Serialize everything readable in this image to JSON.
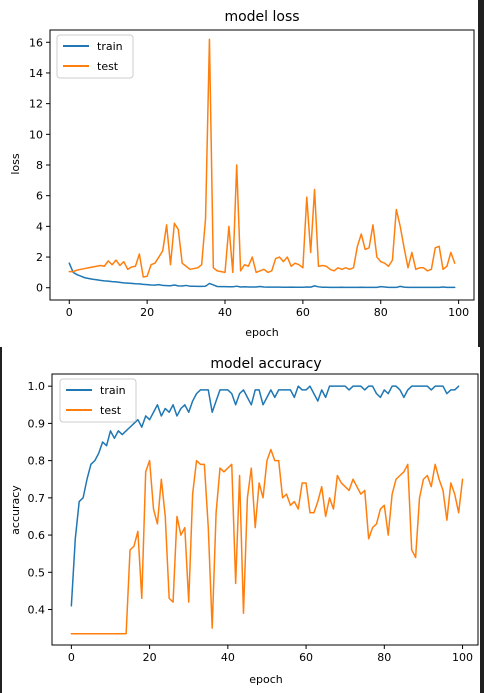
{
  "chart_data": [
    {
      "type": "line",
      "title": "model loss",
      "xlabel": "epoch",
      "ylabel": "loss",
      "xlim": [
        -4.95,
        103.95
      ],
      "ylim": [
        -0.8,
        16.8
      ],
      "xticks": [
        0,
        20,
        40,
        60,
        80,
        100
      ],
      "yticks": [
        0,
        2,
        4,
        6,
        8,
        10,
        12,
        14,
        16
      ],
      "xtick_labels": [
        "0",
        "20",
        "40",
        "60",
        "80",
        "100"
      ],
      "ytick_labels": [
        "0",
        "2",
        "4",
        "6",
        "8",
        "10",
        "12",
        "14",
        "16"
      ],
      "grid": false,
      "legend": "upper left",
      "series": [
        {
          "name": "train",
          "color": "#1f77b4",
          "values": [
            1.6,
            1.0,
            0.85,
            0.75,
            0.65,
            0.6,
            0.55,
            0.52,
            0.48,
            0.45,
            0.43,
            0.4,
            0.38,
            0.35,
            0.32,
            0.3,
            0.28,
            0.26,
            0.25,
            0.22,
            0.2,
            0.18,
            0.17,
            0.2,
            0.15,
            0.14,
            0.13,
            0.18,
            0.12,
            0.11,
            0.15,
            0.1,
            0.1,
            0.09,
            0.09,
            0.1,
            0.28,
            0.18,
            0.08,
            0.07,
            0.07,
            0.06,
            0.06,
            0.1,
            0.05,
            0.06,
            0.05,
            0.05,
            0.05,
            0.08,
            0.05,
            0.04,
            0.04,
            0.04,
            0.04,
            0.03,
            0.03,
            0.04,
            0.03,
            0.03,
            0.03,
            0.05,
            0.04,
            0.12,
            0.06,
            0.03,
            0.03,
            0.02,
            0.02,
            0.02,
            0.03,
            0.02,
            0.02,
            0.02,
            0.02,
            0.03,
            0.02,
            0.02,
            0.02,
            0.02,
            0.07,
            0.05,
            0.02,
            0.02,
            0.02,
            0.09,
            0.04,
            0.02,
            0.02,
            0.02,
            0.02,
            0.02,
            0.02,
            0.02,
            0.02,
            0.02,
            0.05,
            0.02,
            0.02,
            0.02
          ]
        },
        {
          "name": "test",
          "color": "#ff7f0e",
          "values": [
            1.05,
            1.05,
            1.15,
            1.2,
            1.25,
            1.3,
            1.35,
            1.4,
            1.45,
            1.4,
            1.75,
            1.5,
            1.8,
            1.45,
            1.7,
            1.2,
            1.35,
            1.4,
            2.2,
            0.7,
            0.75,
            1.5,
            1.6,
            2.0,
            2.4,
            4.1,
            1.5,
            4.2,
            3.8,
            1.6,
            1.4,
            1.2,
            1.25,
            1.3,
            1.5,
            4.5,
            16.2,
            1.3,
            1.1,
            1.05,
            1.0,
            4.0,
            1.0,
            8.0,
            1.1,
            1.5,
            1.4,
            2.0,
            1.0,
            1.1,
            1.2,
            1.0,
            1.1,
            1.9,
            2.0,
            1.7,
            2.0,
            1.4,
            1.6,
            1.5,
            1.3,
            5.9,
            2.3,
            6.4,
            1.4,
            1.45,
            1.4,
            1.2,
            1.1,
            1.3,
            1.2,
            1.3,
            1.2,
            1.3,
            2.7,
            3.5,
            2.5,
            2.6,
            4.1,
            2.0,
            1.7,
            1.6,
            1.4,
            1.8,
            5.1,
            4.0,
            2.6,
            1.3,
            2.3,
            1.2,
            1.3,
            1.3,
            1.1,
            1.2,
            2.6,
            2.7,
            1.2,
            1.4,
            2.3,
            1.6
          ]
        }
      ]
    },
    {
      "type": "line",
      "title": "model accuracy",
      "xlabel": "epoch",
      "ylabel": "accuracy",
      "xlim": [
        -4.95,
        103.95
      ],
      "ylim": [
        0.3047,
        1.0327
      ],
      "xticks": [
        0,
        20,
        40,
        60,
        80,
        100
      ],
      "yticks": [
        0.4,
        0.5,
        0.6,
        0.7,
        0.8,
        0.9,
        1.0
      ],
      "xtick_labels": [
        "0",
        "20",
        "40",
        "60",
        "80",
        "100"
      ],
      "ytick_labels": [
        "0.4",
        "0.5",
        "0.6",
        "0.7",
        "0.8",
        "0.9",
        "1.0"
      ],
      "grid": false,
      "legend": "upper left",
      "series": [
        {
          "name": "train",
          "color": "#1f77b4",
          "values": [
            0.41,
            0.59,
            0.69,
            0.7,
            0.75,
            0.79,
            0.8,
            0.82,
            0.85,
            0.84,
            0.88,
            0.86,
            0.88,
            0.87,
            0.88,
            0.89,
            0.9,
            0.91,
            0.89,
            0.92,
            0.91,
            0.93,
            0.95,
            0.92,
            0.94,
            0.93,
            0.95,
            0.92,
            0.94,
            0.95,
            0.93,
            0.96,
            0.98,
            0.99,
            0.99,
            0.99,
            0.93,
            0.96,
            0.99,
            0.99,
            0.99,
            0.98,
            0.95,
            0.98,
            0.99,
            0.97,
            0.95,
            0.99,
            0.99,
            0.95,
            0.97,
            0.99,
            0.97,
            0.99,
            0.99,
            0.99,
            0.99,
            0.97,
            1.0,
            0.99,
            0.99,
            1.0,
            0.98,
            0.96,
            0.99,
            0.97,
            1.0,
            1.0,
            1.0,
            1.0,
            1.0,
            0.99,
            1.0,
            1.0,
            1.0,
            0.99,
            1.0,
            1.0,
            0.98,
            0.97,
            0.99,
            0.98,
            1.0,
            1.0,
            0.99,
            0.97,
            0.99,
            1.0,
            1.0,
            1.0,
            1.0,
            1.0,
            0.99,
            1.0,
            1.0,
            1.0,
            0.98,
            0.99,
            0.99,
            1.0
          ]
        },
        {
          "name": "test",
          "color": "#ff7f0e",
          "values": [
            0.335,
            0.335,
            0.335,
            0.335,
            0.335,
            0.335,
            0.335,
            0.335,
            0.335,
            0.335,
            0.335,
            0.335,
            0.335,
            0.335,
            0.335,
            0.56,
            0.57,
            0.61,
            0.43,
            0.77,
            0.8,
            0.67,
            0.63,
            0.75,
            0.65,
            0.43,
            0.42,
            0.65,
            0.6,
            0.62,
            0.42,
            0.71,
            0.8,
            0.79,
            0.79,
            0.62,
            0.35,
            0.66,
            0.78,
            0.77,
            0.78,
            0.79,
            0.47,
            0.76,
            0.39,
            0.7,
            0.78,
            0.62,
            0.74,
            0.7,
            0.8,
            0.83,
            0.8,
            0.8,
            0.7,
            0.71,
            0.68,
            0.69,
            0.67,
            0.74,
            0.74,
            0.66,
            0.66,
            0.69,
            0.73,
            0.65,
            0.7,
            0.67,
            0.76,
            0.74,
            0.73,
            0.72,
            0.75,
            0.73,
            0.71,
            0.72,
            0.59,
            0.62,
            0.63,
            0.67,
            0.68,
            0.6,
            0.71,
            0.75,
            0.76,
            0.77,
            0.79,
            0.56,
            0.54,
            0.7,
            0.75,
            0.76,
            0.73,
            0.79,
            0.75,
            0.72,
            0.64,
            0.74,
            0.71,
            0.66,
            0.75
          ]
        }
      ]
    }
  ]
}
